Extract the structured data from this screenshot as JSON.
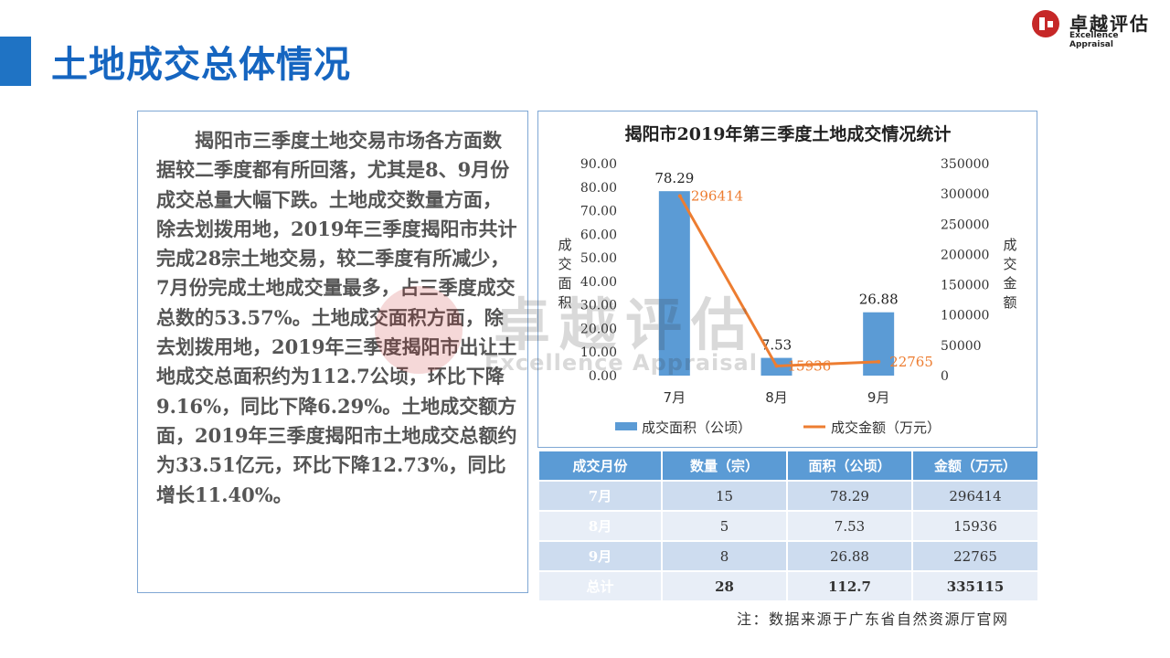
{
  "header": {
    "title": "土地成交总体情况",
    "logo_cn": "卓越评估",
    "logo_en": "Excellence Appraisal"
  },
  "body_text": "揭阳市三季度土地交易市场各方面数据较二季度都有所回落，尤其是8、9月份成交总量大幅下跌。土地成交数量方面，除去划拨用地，2019年三季度揭阳市共计完成28宗土地交易，较二季度有所减少，7月份完成土地成交量最多，占三季度成交总数的53.57%。土地成交面积方面，除去划拨用地，2019年三季度揭阳市出让土地成交总面积约为112.7公顷，环比下降9.16%，同比下降6.29%。土地成交额方面，2019年三季度揭阳市土地成交总额约为33.51亿元，环比下降12.73%，同比增长11.40%。",
  "chart_data": {
    "type": "bar",
    "title": "揭阳市2019年第三季度土地成交情况统计",
    "categories": [
      "7月",
      "8月",
      "9月"
    ],
    "series": [
      {
        "name": "成交面积（公顷）",
        "type": "bar",
        "axis": "left",
        "values": [
          78.29,
          7.53,
          26.88
        ],
        "labels": [
          "78.29",
          "7.53",
          "26.88"
        ],
        "color": "#5b9bd5"
      },
      {
        "name": "成交金额（万元）",
        "type": "line",
        "axis": "right",
        "values": [
          296414,
          15936,
          22765
        ],
        "labels": [
          "296414",
          "15936",
          "22765"
        ],
        "color": "#ed7d31"
      }
    ],
    "ylabel": "成交面积",
    "y2label": "成交金额",
    "ylim": [
      0,
      90
    ],
    "y2lim": [
      0,
      350000
    ],
    "yticks": [
      "0.00",
      "10.00",
      "20.00",
      "30.00",
      "40.00",
      "50.00",
      "60.00",
      "70.00",
      "80.00",
      "90.00"
    ],
    "y2ticks": [
      "0",
      "50000",
      "100000",
      "150000",
      "200000",
      "250000",
      "300000",
      "350000"
    ],
    "legend_position": "bottom",
    "grid": false
  },
  "table": {
    "headers": [
      "成交月份",
      "数量（宗）",
      "面积（公顷）",
      "金额（万元）"
    ],
    "rows": [
      [
        "7月",
        "15",
        "78.29",
        "296414"
      ],
      [
        "8月",
        "5",
        "7.53",
        "15936"
      ],
      [
        "9月",
        "8",
        "26.88",
        "22765"
      ],
      [
        "总计",
        "28",
        "112.7",
        "335115"
      ]
    ]
  },
  "note": "注：数据来源于广东省自然资源厅官网",
  "watermark": {
    "cn": "卓越评估",
    "en": "Excellence Appraisal"
  },
  "colors": {
    "accent": "#1565c0",
    "bar": "#5b9bd5",
    "line": "#ed7d31",
    "logo_red": "#c62828"
  }
}
